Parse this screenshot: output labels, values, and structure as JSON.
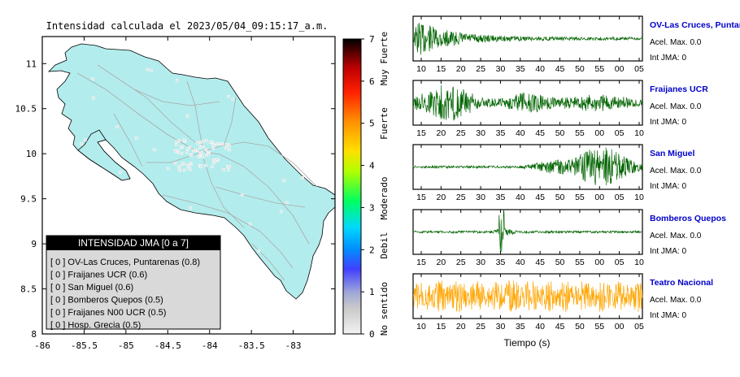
{
  "map": {
    "title": "Intensidad calculada el 2023/05/04_09:15:17_a.m.",
    "x_ticks": [
      "-86",
      "-85.5",
      "-85",
      "-84.5",
      "-84",
      "-83.5",
      "-83"
    ],
    "y_ticks": [
      "11",
      "10.5",
      "10",
      "9.5",
      "9",
      "8.5",
      "8"
    ],
    "land_color": "#b3ecec",
    "legend": {
      "title": "INTENSIDAD JMA [0 a 7]",
      "items": [
        "[ 0 ] OV-Las Cruces, Puntarenas (0.8)",
        "[ 0 ] Fraijanes UCR (0.6)",
        "[ 0 ] San Miguel (0.6)",
        "[ 0 ] Bomberos Quepos (0.5)",
        "[ 0 ] Fraijanes N00 UCR (0.5)",
        "[ 0 ] Hosp. Grecia (0.5)"
      ]
    }
  },
  "colorbar": {
    "ticks": [
      "0",
      "1",
      "2",
      "3",
      "4",
      "5",
      "6",
      "7"
    ],
    "labels": [
      "No sentido",
      "Debil",
      "Moderado",
      "Fuerte",
      "Muy Fuerte"
    ]
  },
  "seismograms": {
    "xlabel": "Tiempo (s)",
    "panels": [
      {
        "name": "OV-Las Cruces, Puntar",
        "acel": "Acel. Max. 0.0",
        "jma": "Int JMA: 0",
        "color": "#006400",
        "ticks": [
          "10",
          "15",
          "20",
          "25",
          "30",
          "35",
          "40",
          "45",
          "50",
          "55",
          "00",
          "05"
        ],
        "envelope": "decay"
      },
      {
        "name": "Fraijanes UCR",
        "acel": "Acel. Max. 0.0",
        "jma": "Int JMA: 0",
        "color": "#006400",
        "ticks": [
          "15",
          "20",
          "25",
          "30",
          "35",
          "40",
          "45",
          "50",
          "55",
          "00",
          "05",
          "10"
        ],
        "envelope": "early"
      },
      {
        "name": "San Miguel",
        "acel": "Acel. Max. 0.0",
        "jma": "Int JMA: 0",
        "color": "#006400",
        "ticks": [
          "15",
          "20",
          "25",
          "30",
          "35",
          "40",
          "45",
          "50",
          "55",
          "00",
          "05",
          "10"
        ],
        "envelope": "late"
      },
      {
        "name": "Bomberos Quepos",
        "acel": "Acel. Max. 0.0",
        "jma": "Int JMA: 0",
        "color": "#006400",
        "ticks": [
          "15",
          "20",
          "25",
          "30",
          "35",
          "40",
          "45",
          "50",
          "55",
          "00",
          "05",
          "10"
        ],
        "envelope": "spike"
      },
      {
        "name": "Teatro Nacional",
        "acel": "Acel. Max. 0.0",
        "jma": "Int JMA: 0",
        "color": "#ffa500",
        "ticks": [
          "10",
          "15",
          "20",
          "25",
          "30",
          "35",
          "40",
          "45",
          "50",
          "55",
          "00",
          "05"
        ],
        "envelope": "noise"
      }
    ]
  },
  "chart_data": {
    "type": "line",
    "title": "Intensidad calculada el 2023/05/04_09:15:17_a.m.",
    "xlabel": "Tiempo (s)",
    "series": [
      {
        "name": "OV-Las Cruces, Puntar",
        "values": [
          0.0
        ]
      },
      {
        "name": "Fraijanes UCR",
        "values": [
          0.0
        ]
      },
      {
        "name": "San Miguel",
        "values": [
          0.0
        ]
      },
      {
        "name": "Bomberos Quepos",
        "values": [
          0.0
        ]
      },
      {
        "name": "Teatro Nacional",
        "values": [
          0.0
        ]
      }
    ],
    "xlim_map": [
      -86,
      -82.5
    ],
    "ylim_map": [
      8,
      11.3
    ],
    "colorbar_range": [
      0,
      7
    ]
  }
}
